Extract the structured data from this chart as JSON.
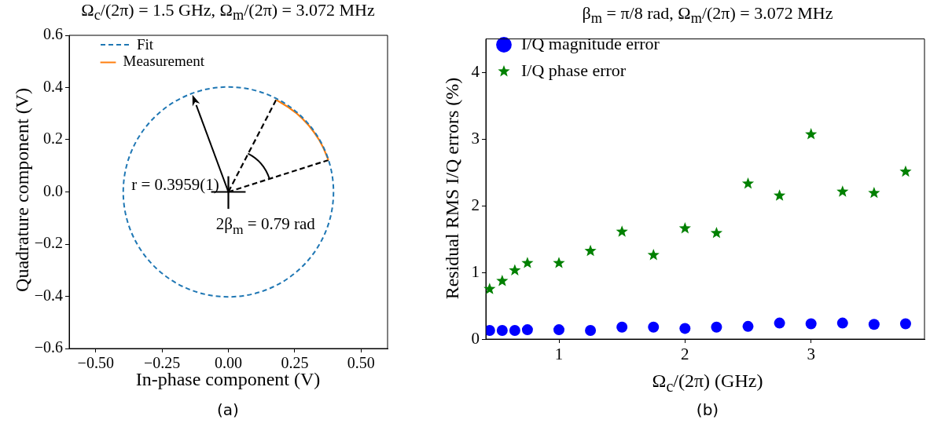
{
  "chart_data": [
    {
      "type": "line",
      "title": "Ω$_{c}$/(2π) = 1.5 GHz, Ω$_{m}$/(2π) = 3.072 MHz",
      "xlabel": "In-phase component (V)",
      "ylabel": "Quadrature component (V)",
      "xlim": [
        -0.6,
        0.6
      ],
      "ylim": [
        -0.6,
        0.6
      ],
      "xticks": [
        {
          "value": -0.5,
          "label": "−0.50"
        },
        {
          "value": -0.25,
          "label": "−0.25"
        },
        {
          "value": 0,
          "label": "0.00"
        },
        {
          "value": 0.25,
          "label": "0.25"
        },
        {
          "value": 0.5,
          "label": "0.50"
        }
      ],
      "yticks": [
        {
          "value": -0.6,
          "label": "−0.6"
        },
        {
          "value": -0.4,
          "label": "−0.4"
        },
        {
          "value": -0.2,
          "label": "−0.2"
        },
        {
          "value": 0,
          "label": "0.0"
        },
        {
          "value": 0.2,
          "label": "0.2"
        },
        {
          "value": 0.4,
          "label": "0.4"
        },
        {
          "value": 0.6,
          "label": "0.6"
        }
      ],
      "grid": false,
      "legend": "top left",
      "marker": "none",
      "series": [
        {
          "name": "Measurement",
          "color": "#ff7f0e",
          "line_style": "solid",
          "x": [
            0.18,
            0.227,
            0.255,
            0.28,
            0.303,
            0.324,
            0.343,
            0.359,
            0.377
          ],
          "values": [
            0.353,
            0.324,
            0.303,
            0.28,
            0.255,
            0.227,
            0.198,
            0.167,
            0.122
          ]
        },
        {
          "color": "#000000",
          "line_style": "dashed",
          "x": [
            0,
            0.377
          ],
          "values": [
            0,
            0.122
          ]
        },
        {
          "color": "#000000",
          "line_style": "dashed",
          "x": [
            0,
            0.18
          ],
          "values": [
            0,
            0.353
          ]
        },
        {
          "color": "#000000",
          "line_style": "solid",
          "x": [
            -0.065,
            0.065
          ],
          "values": [
            0,
            0
          ]
        },
        {
          "color": "#000000",
          "line_style": "solid",
          "x": [
            0,
            0
          ],
          "values": [
            -0.065,
            0.06
          ]
        }
      ],
      "annotations": [
        "Fit",
        "r = 0.3959(1)",
        "2β$_{m}$ = 0.79 rad",
        "(a)"
      ]
    },
    {
      "type": "scatter",
      "title": "β$_{m}$ = π/8 rad, Ω$_{m}$/(2π) = 3.072 MHz",
      "xlabel": "Ω$_{c}$/(2π)  (GHz)",
      "ylabel": "Residual RMS I/Q errors (%)",
      "x": [
        0.45,
        0.55,
        0.65,
        0.75,
        1.0,
        1.25,
        1.5,
        1.75,
        2.0,
        2.25,
        2.5,
        2.75,
        3.0,
        3.25,
        3.5,
        3.75
      ],
      "xlim": [
        0.42,
        3.9
      ],
      "ylim": [
        0,
        4.5
      ],
      "xticks": [
        1,
        2,
        3
      ],
      "yticks": [
        0,
        1,
        2,
        3,
        4
      ],
      "grid": false,
      "legend": "top left",
      "series": [
        {
          "name": "I/Q magnitude error",
          "color": "#0000ff",
          "marker": "circle",
          "values": [
            0.13,
            0.13,
            0.13,
            0.14,
            0.14,
            0.13,
            0.18,
            0.18,
            0.16,
            0.18,
            0.19,
            0.24,
            0.23,
            0.24,
            0.22,
            0.23
          ]
        },
        {
          "name": "I/Q phase error",
          "color": "#008000",
          "marker": "star",
          "values": [
            0.75,
            0.87,
            1.03,
            1.14,
            1.14,
            1.32,
            1.61,
            1.26,
            1.66,
            1.59,
            2.33,
            2.15,
            3.07,
            2.21,
            2.19,
            2.51
          ]
        }
      ],
      "annotations": [
        "(b)"
      ]
    }
  ]
}
